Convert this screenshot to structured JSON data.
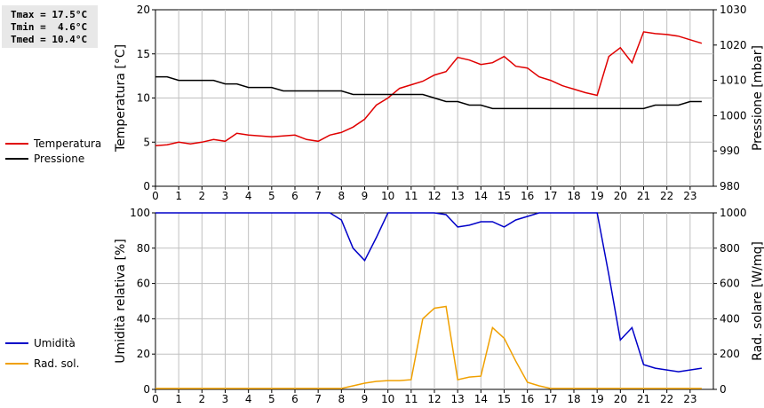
{
  "stats": {
    "tmax": "Tmax = 17.5°C",
    "tmin": "Tmin =  4.6°C",
    "tmed": "Tmed = 10.4°C"
  },
  "colors": {
    "temperature": "#e00000",
    "pressure": "#000000",
    "humidity": "#0000c8",
    "radiation": "#f0a000",
    "grid": "#c0c0c0"
  },
  "chart_data": [
    {
      "type": "line",
      "ylabel": "Temperatura [°C]",
      "y2label": "Pressione [mbar]",
      "xlim": [
        0,
        24
      ],
      "ylim": [
        0,
        20
      ],
      "y2lim": [
        980,
        1030
      ],
      "xticks": [
        "0",
        "1",
        "2",
        "3",
        "4",
        "5",
        "6",
        "7",
        "8",
        "9",
        "10",
        "11",
        "12",
        "13",
        "14",
        "15",
        "16",
        "17",
        "18",
        "19",
        "20",
        "21",
        "22",
        "23"
      ],
      "yticks": [
        "0",
        "5",
        "10",
        "15",
        "20"
      ],
      "y2ticks": [
        "980",
        "990",
        "1000",
        "1010",
        "1020",
        "1030"
      ],
      "grid": true,
      "legend_position": "left",
      "series": [
        {
          "name": "Temperatura",
          "axis": "left",
          "x": [
            0,
            0.5,
            1,
            1.5,
            2,
            2.5,
            3,
            3.5,
            4,
            4.5,
            5,
            5.5,
            6,
            6.5,
            7,
            7.5,
            8,
            8.5,
            9,
            9.5,
            10,
            10.5,
            11,
            11.5,
            12,
            12.5,
            13,
            13.5,
            14,
            14.5,
            15,
            15.5,
            16,
            16.5,
            17,
            17.5,
            18,
            18.5,
            19,
            19.5,
            20,
            20.5,
            21,
            21.5,
            22,
            22.5,
            23,
            23.5
          ],
          "y": [
            4.6,
            4.7,
            5.0,
            4.8,
            5.0,
            5.3,
            5.1,
            6.0,
            5.8,
            5.7,
            5.6,
            5.7,
            5.8,
            5.3,
            5.1,
            5.8,
            6.1,
            6.7,
            7.6,
            9.2,
            10.0,
            11.1,
            11.5,
            11.9,
            12.6,
            13.0,
            14.6,
            14.3,
            13.8,
            14.0,
            14.7,
            13.6,
            13.4,
            12.4,
            12.0,
            11.4,
            11.0,
            10.6,
            10.3,
            14.7,
            15.7,
            14.0,
            17.5,
            17.3,
            17.2,
            17.0,
            16.6,
            16.2
          ]
        },
        {
          "name": "Pressione",
          "axis": "right",
          "x": [
            0,
            0.5,
            1,
            1.5,
            2,
            2.5,
            3,
            3.5,
            4,
            4.5,
            5,
            5.5,
            6,
            6.5,
            7,
            7.5,
            8,
            8.5,
            9,
            9.5,
            10,
            10.5,
            11,
            11.5,
            12,
            12.5,
            13,
            13.5,
            14,
            14.5,
            15,
            15.5,
            16,
            16.5,
            17,
            17.5,
            18,
            18.5,
            19,
            19.5,
            20,
            20.5,
            21,
            21.5,
            22,
            22.5,
            23,
            23.5
          ],
          "y": [
            1011,
            1011,
            1010,
            1010,
            1010,
            1010,
            1009,
            1009,
            1008,
            1008,
            1008,
            1007,
            1007,
            1007,
            1007,
            1007,
            1007,
            1006,
            1006,
            1006,
            1006,
            1006,
            1006,
            1006,
            1005,
            1004,
            1004,
            1003,
            1003,
            1002,
            1002,
            1002,
            1002,
            1002,
            1002,
            1002,
            1002,
            1002,
            1002,
            1002,
            1002,
            1002,
            1002,
            1003,
            1003,
            1003,
            1004,
            1004
          ]
        }
      ]
    },
    {
      "type": "line",
      "ylabel": "Umidità relativa [%]",
      "y2label": "Rad. solare [W/mq]",
      "xlim": [
        0,
        24
      ],
      "ylim": [
        0,
        100
      ],
      "y2lim": [
        0,
        1000
      ],
      "xticks": [
        "0",
        "1",
        "2",
        "3",
        "4",
        "5",
        "6",
        "7",
        "8",
        "9",
        "10",
        "11",
        "12",
        "13",
        "14",
        "15",
        "16",
        "17",
        "18",
        "19",
        "20",
        "21",
        "22",
        "23"
      ],
      "yticks": [
        "0",
        "20",
        "40",
        "60",
        "80",
        "100"
      ],
      "y2ticks": [
        "0",
        "200",
        "400",
        "600",
        "800",
        "1000"
      ],
      "grid": true,
      "legend_position": "left",
      "series": [
        {
          "name": "Umidità",
          "axis": "left",
          "x": [
            0,
            0.5,
            1,
            1.5,
            2,
            2.5,
            3,
            3.5,
            4,
            4.5,
            5,
            5.5,
            6,
            6.5,
            7,
            7.5,
            8,
            8.5,
            9,
            9.5,
            10,
            10.5,
            11,
            11.5,
            12,
            12.5,
            13,
            13.5,
            14,
            14.5,
            15,
            15.5,
            16,
            16.5,
            17,
            17.5,
            18,
            18.5,
            19,
            19.5,
            20,
            20.5,
            21,
            21.5,
            22,
            22.5,
            23,
            23.5
          ],
          "y": [
            100,
            100,
            100,
            100,
            100,
            100,
            100,
            100,
            100,
            100,
            100,
            100,
            100,
            100,
            100,
            100,
            96,
            80,
            73,
            86,
            100,
            100,
            100,
            100,
            100,
            99,
            92,
            93,
            95,
            95,
            92,
            96,
            98,
            100,
            100,
            100,
            100,
            100,
            100,
            65,
            28,
            35,
            14,
            12,
            11,
            10,
            11,
            12
          ]
        },
        {
          "name": "Rad. sol.",
          "axis": "right",
          "x": [
            0,
            0.5,
            1,
            1.5,
            2,
            2.5,
            3,
            3.5,
            4,
            4.5,
            5,
            5.5,
            6,
            6.5,
            7,
            7.5,
            8,
            8.5,
            9,
            9.5,
            10,
            10.5,
            11,
            11.5,
            12,
            12.5,
            13,
            13.5,
            14,
            14.5,
            15,
            15.5,
            16,
            16.5,
            17,
            17.5,
            18,
            18.5,
            19,
            19.5,
            20,
            20.5,
            21,
            21.5,
            22,
            22.5,
            23,
            23.5
          ],
          "y": [
            5,
            5,
            5,
            5,
            5,
            5,
            5,
            5,
            5,
            5,
            5,
            5,
            5,
            5,
            5,
            5,
            5,
            20,
            35,
            45,
            50,
            50,
            55,
            400,
            460,
            470,
            55,
            70,
            75,
            350,
            290,
            160,
            40,
            20,
            5,
            5,
            5,
            5,
            5,
            5,
            5,
            5,
            5,
            5,
            5,
            5,
            5,
            5
          ]
        }
      ]
    }
  ]
}
